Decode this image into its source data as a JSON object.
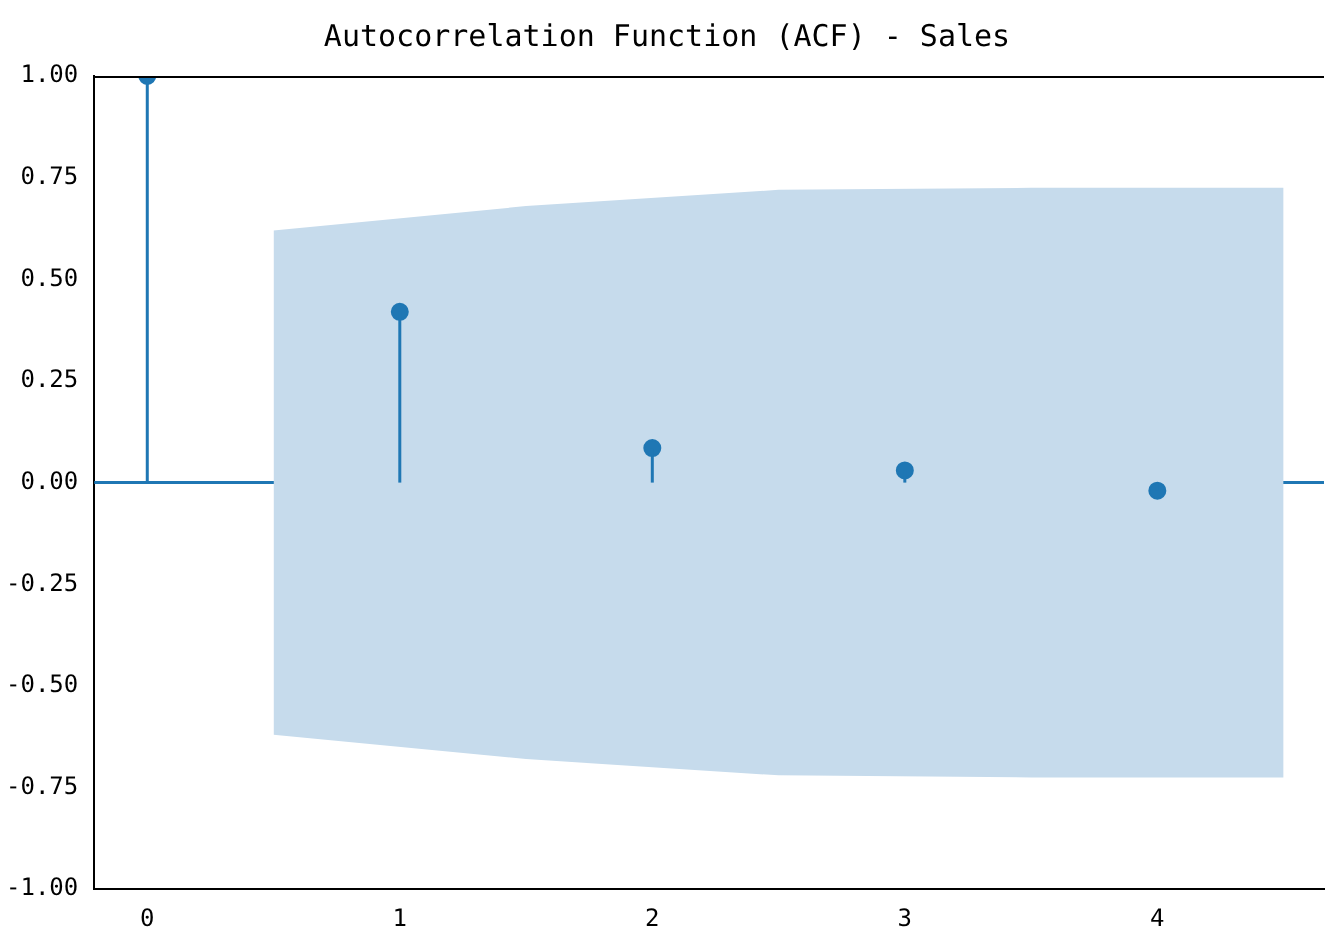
{
  "chart_data": {
    "type": "lollipop",
    "title": "Autocorrelation Function (ACF) - Sales",
    "xlim": [
      -0.21,
      4.66
    ],
    "xticks": [
      0,
      1,
      2,
      3,
      4
    ],
    "ylim": [
      -1,
      1
    ],
    "yticks": [
      {
        "value": -1,
        "label": "-1.00"
      },
      {
        "value": -0.75,
        "label": "-0.75"
      },
      {
        "value": -0.5,
        "label": "-0.50"
      },
      {
        "value": -0.25,
        "label": "-0.25"
      },
      {
        "value": 0,
        "label": "0.00"
      },
      {
        "value": 0.25,
        "label": "0.25"
      },
      {
        "value": 0.5,
        "label": "0.50"
      },
      {
        "value": 0.75,
        "label": "0.75"
      },
      {
        "value": 1,
        "label": "1.00"
      }
    ],
    "series": [
      {
        "color": "#1f77b4",
        "x": [
          0,
          1,
          2,
          3,
          4
        ],
        "values": [
          1.0,
          0.42,
          0.085,
          0.03,
          -0.02
        ]
      },
      {
        "type": "area",
        "color": "#c6dbec",
        "x": [
          0.5,
          1.5,
          2.5,
          3.5,
          4.5
        ],
        "values": [
          null,
          null,
          null,
          null,
          null
        ],
        "lower": [
          -0.62,
          -0.68,
          -0.72,
          -0.725,
          -0.725
        ],
        "upper": [
          0.62,
          0.68,
          0.72,
          0.725,
          0.725
        ]
      }
    ],
    "ref_lines": [
      {
        "axis": "y",
        "value": 0,
        "color": "#1f77b4"
      }
    ],
    "marker": "circle",
    "grid": false,
    "legend": false
  }
}
